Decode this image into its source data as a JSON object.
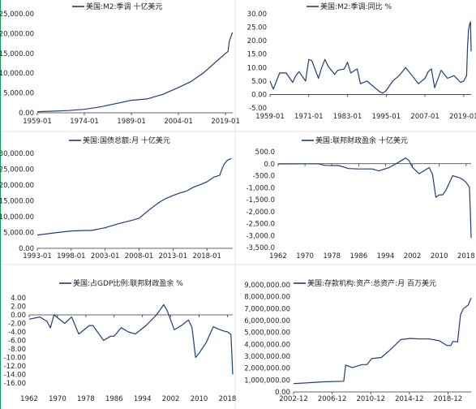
{
  "colors": {
    "line": "#1f3d7a",
    "axis": "#333333",
    "divider": "#e6e6e6",
    "accent": "#00a651"
  },
  "chart_data": [
    {
      "type": "line",
      "title": "美国:M2:季调 十亿美元",
      "ylim": [
        0,
        25000
      ],
      "yticks": [
        "25,000.00",
        "20,000.00",
        "15,000.00",
        "10,000.00",
        "5,000.00",
        "0.00"
      ],
      "xticks": [
        "1959-01",
        "1974-01",
        "1989-01",
        "2004-01",
        "2019-01"
      ],
      "xticks_at": [
        1959,
        1974,
        1989,
        2004,
        2019
      ],
      "xlim": [
        1959,
        2021.3
      ],
      "legend_position": "top",
      "series": [
        {
          "name": "美国:M2:季调 十亿美元",
          "x": [
            1959,
            1964,
            1969,
            1974,
            1979,
            1984,
            1989,
            1994,
            1999,
            2004,
            2008,
            2012,
            2016,
            2019,
            2019.8,
            2020.2,
            2020.5,
            2021.2
          ],
          "y": [
            290,
            420,
            580,
            880,
            1480,
            2310,
            3150,
            3500,
            4650,
            6400,
            7900,
            10100,
            12900,
            15000,
            15500,
            18000,
            18700,
            20300
          ]
        }
      ]
    },
    {
      "type": "line",
      "title": "美国:M2:季调:同比 %",
      "ylim": [
        -5,
        30
      ],
      "yticks": [
        "30.00",
        "25.00",
        "20.00",
        "15.00",
        "10.00",
        "5.00",
        "0.00",
        "-5.00"
      ],
      "xticks": [
        "1959-01",
        "1971-01",
        "1983-01",
        "1995-01",
        "2007-01",
        "2019-01"
      ],
      "xticks_at": [
        1959,
        1971,
        1983,
        1995,
        2007,
        2019
      ],
      "xlim": [
        1959,
        2021.3
      ],
      "legend_position": "top",
      "series": [
        {
          "name": "美国:M2:季调:同比 %",
          "x": [
            1959,
            1960,
            1962,
            1964,
            1966,
            1967,
            1968,
            1970,
            1971,
            1972,
            1974,
            1975,
            1976,
            1977,
            1979,
            1980,
            1982,
            1983,
            1984,
            1986,
            1987,
            1989,
            1991,
            1993,
            1994,
            1995,
            1997,
            1999,
            2001,
            2003,
            2005,
            2007,
            2008,
            2009,
            2010,
            2012,
            2014,
            2016,
            2018,
            2019,
            2019.9,
            2020.2,
            2020.5,
            2020.8,
            2021.1,
            2021.3
          ],
          "y": [
            5,
            2,
            8,
            8,
            4.5,
            7,
            8.5,
            5,
            13,
            12.5,
            6,
            10,
            13,
            10.5,
            7.5,
            9,
            9.5,
            12,
            8,
            9.5,
            4,
            5,
            3,
            1,
            0.5,
            1.5,
            5,
            7,
            10,
            7,
            4,
            6,
            8.5,
            9.5,
            2.5,
            9,
            6,
            7,
            4.5,
            5,
            7,
            18,
            24,
            26,
            27,
            16
          ]
        }
      ]
    },
    {
      "type": "line",
      "title": "美国:国债总额:月 十亿美元",
      "ylim": [
        0,
        30000
      ],
      "yticks": [
        "30,000.00",
        "25,000.00",
        "20,000.00",
        "15,000.00",
        "10,000.00",
        "5,000.00",
        "0.00"
      ],
      "xticks": [
        "1993-01",
        "1998-01",
        "2003-01",
        "2008-01",
        "2013-01",
        "2018-01"
      ],
      "xticks_at": [
        1993,
        1998,
        2003,
        2008,
        2013,
        2018
      ],
      "xlim": [
        1993,
        2021.8
      ],
      "legend_position": "top",
      "series": [
        {
          "name": "美国:国债总额:月 十亿美元",
          "x": [
            1993,
            1996,
            1998,
            2000,
            2001,
            2003,
            2005,
            2007,
            2008,
            2009,
            2010,
            2011,
            2012,
            2013,
            2014,
            2015,
            2016,
            2017,
            2018,
            2019,
            2019.9,
            2020.3,
            2020.6,
            2021,
            2021.6
          ],
          "y": [
            4200,
            5000,
            5500,
            5650,
            5650,
            6500,
            7800,
            8900,
            9500,
            11300,
            13000,
            14600,
            15800,
            16700,
            17500,
            18100,
            19300,
            20100,
            21000,
            22500,
            23100,
            25500,
            26800,
            27800,
            28400
          ]
        }
      ]
    },
    {
      "type": "line",
      "title": "美国:联邦财政盈余 十亿美元",
      "ylim": [
        -3500,
        500
      ],
      "yticks": [
        "500.0",
        "0.0",
        "-500.0",
        "-1,000.0",
        "-1,500.0",
        "-2,000.0",
        "-2,500.0",
        "-3,000.0",
        "-3,500.0"
      ],
      "xticks": [
        "1962",
        "1970",
        "1978",
        "1986",
        "1994",
        "2002",
        "2010",
        "2018"
      ],
      "xticks_at": [
        1962,
        1970,
        1978,
        1986,
        1994,
        2002,
        2010,
        2018
      ],
      "xlim": [
        1962,
        2019.5
      ],
      "legend_position": "top",
      "series": [
        {
          "name": "美国:联邦财政盈余 十亿美元",
          "x": [
            1962,
            1966,
            1970,
            1974,
            1976,
            1980,
            1983,
            1986,
            1990,
            1992,
            1995,
            1998,
            2000,
            2001,
            2002,
            2004,
            2006,
            2007,
            2008,
            2009,
            2010,
            2011,
            2012,
            2014,
            2016,
            2017,
            2018,
            2019,
            2019.3,
            2019.5
          ],
          "y": [
            -7,
            -4,
            -3,
            -6,
            -70,
            -75,
            -200,
            -220,
            -220,
            -300,
            -165,
            70,
            240,
            130,
            -150,
            -420,
            -250,
            -160,
            -450,
            -1400,
            -1300,
            -1300,
            -1100,
            -500,
            -580,
            -660,
            -780,
            -980,
            -2200,
            -3100
          ]
        }
      ]
    },
    {
      "type": "line",
      "title": "美国:占GDP比例:联邦财政盈余 %",
      "ylim": [
        -16,
        4
      ],
      "yticks": [
        "4.00",
        "2.00",
        "0.00",
        "-2.00",
        "-4.00",
        "-6.00",
        "-8.00",
        "-10.00",
        "-12.00",
        "-14.00",
        "-16.00"
      ],
      "xticks": [
        "1962",
        "1970",
        "1978",
        "1986",
        "1994",
        "2002",
        "2010",
        "2018"
      ],
      "xticks_at": [
        1962,
        1970,
        1978,
        1986,
        1994,
        2002,
        2010,
        2018
      ],
      "xlim": [
        1962,
        2019.5
      ],
      "legend_position": "top",
      "series": [
        {
          "name": "美国:占GDP比例:联邦财政盈余 %",
          "x": [
            1962,
            1965,
            1967,
            1968,
            1969,
            1972,
            1974,
            1976,
            1979,
            1980,
            1983,
            1985,
            1986,
            1988,
            1990,
            1992,
            1995,
            1998,
            2000,
            2001,
            2003,
            2005,
            2007,
            2008,
            2009,
            2010,
            2012,
            2014,
            2016,
            2017,
            2018,
            2019,
            2019.3,
            2019.5
          ],
          "y": [
            -1,
            -0.5,
            -1.5,
            -3,
            0,
            -2,
            -0.5,
            -4.5,
            -2.5,
            -2.5,
            -6,
            -5,
            -5,
            -3,
            -4,
            -4.5,
            -2.5,
            0,
            2.4,
            1,
            -3.5,
            -2.5,
            -1.2,
            -3,
            -10,
            -9,
            -6.5,
            -2.8,
            -3.5,
            -3.8,
            -4,
            -4.6,
            -10,
            -14
          ]
        }
      ]
    },
    {
      "type": "line",
      "title": "美国:存款机构:资产:总资产:月 百万美元",
      "ylim": [
        0,
        9000000
      ],
      "yticks": [
        "9,000,000.00",
        "8,000,000.00",
        "7,000,000.00",
        "6,000,000.00",
        "5,000,000.00",
        "4,000,000.00",
        "3,000,000.00",
        "2,000,000.00",
        "1,000,000.00",
        "0.00"
      ],
      "xticks": [
        "2002-12",
        "2006-12",
        "2010-12",
        "2014-12",
        "2018-12"
      ],
      "xticks_at": [
        2002.9,
        2006.9,
        2010.9,
        2014.9,
        2018.9
      ],
      "xlim": [
        2002.9,
        2021.3
      ],
      "legend_position": "top",
      "series": [
        {
          "name": "美国:存款机构:资产:总资产:月 百万美元",
          "x": [
            2002.9,
            2004,
            2006,
            2008.1,
            2008.3,
            2009,
            2010,
            2010.5,
            2011,
            2012,
            2013,
            2014,
            2015,
            2016,
            2017,
            2018,
            2018.8,
            2019.2,
            2019.4,
            2019.9,
            2020.2,
            2020.5,
            2021,
            2021.3
          ],
          "y": [
            700000,
            750000,
            850000,
            900000,
            2250000,
            2050000,
            2300000,
            2300000,
            2800000,
            2900000,
            3600000,
            4400000,
            4500000,
            4450000,
            4450000,
            4300000,
            3900000,
            3900000,
            4250000,
            4200000,
            6500000,
            7000000,
            7300000,
            7900000
          ]
        }
      ]
    }
  ]
}
